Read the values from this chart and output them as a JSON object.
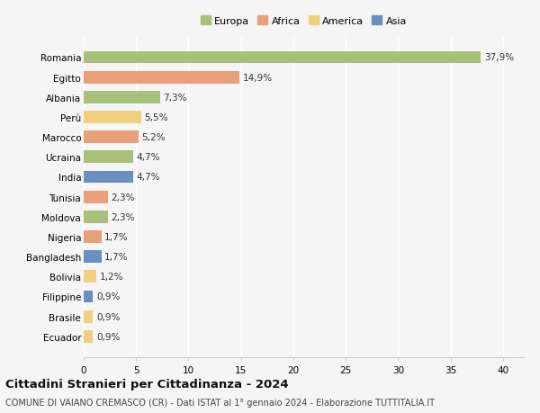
{
  "countries": [
    "Romania",
    "Egitto",
    "Albania",
    "Perù",
    "Marocco",
    "Ucraina",
    "India",
    "Tunisia",
    "Moldova",
    "Nigeria",
    "Bangladesh",
    "Bolivia",
    "Filippine",
    "Brasile",
    "Ecuador"
  ],
  "values": [
    37.9,
    14.9,
    7.3,
    5.5,
    5.2,
    4.7,
    4.7,
    2.3,
    2.3,
    1.7,
    1.7,
    1.2,
    0.9,
    0.9,
    0.9
  ],
  "labels": [
    "37,9%",
    "14,9%",
    "7,3%",
    "5,5%",
    "5,2%",
    "4,7%",
    "4,7%",
    "2,3%",
    "2,3%",
    "1,7%",
    "1,7%",
    "1,2%",
    "0,9%",
    "0,9%",
    "0,9%"
  ],
  "continents": [
    "Europa",
    "Africa",
    "Europa",
    "America",
    "Africa",
    "Europa",
    "Asia",
    "Africa",
    "Europa",
    "Africa",
    "Asia",
    "America",
    "Asia",
    "America",
    "America"
  ],
  "continent_colors": {
    "Europa": "#a8c07a",
    "Africa": "#e8a07a",
    "America": "#f0d080",
    "Asia": "#6a8fc0"
  },
  "legend_order": [
    "Europa",
    "Africa",
    "America",
    "Asia"
  ],
  "legend_colors": [
    "#a8c07a",
    "#e8a07a",
    "#f0d080",
    "#6a8fc0"
  ],
  "xlim": [
    0,
    42
  ],
  "xticks": [
    0,
    5,
    10,
    15,
    20,
    25,
    30,
    35,
    40
  ],
  "title": "Cittadini Stranieri per Cittadinanza - 2024",
  "subtitle": "COMUNE DI VAIANO CREMASCO (CR) - Dati ISTAT al 1° gennaio 2024 - Elaborazione TUTTITALIA.IT",
  "background_color": "#f5f5f5",
  "grid_color": "#ffffff",
  "bar_height": 0.62,
  "title_fontsize": 9.5,
  "subtitle_fontsize": 7,
  "label_fontsize": 7.5,
  "tick_fontsize": 7.5,
  "legend_fontsize": 8
}
